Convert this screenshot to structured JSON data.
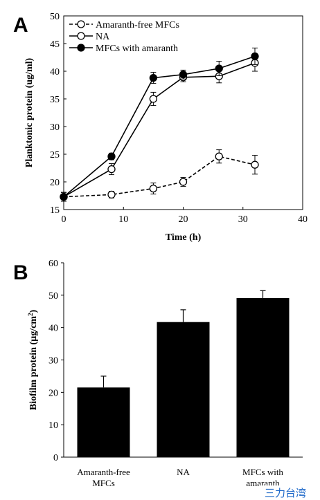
{
  "watermark_text": "三力台湾",
  "chart_data": [
    {
      "panel": "A",
      "type": "line",
      "xlabel": "Time (h)",
      "ylabel": "Planktonic protein (ug/ml)",
      "xlim": [
        0,
        40
      ],
      "ylim": [
        15,
        50
      ],
      "xticks": [
        0,
        10,
        20,
        30,
        40
      ],
      "yticks": [
        15,
        20,
        25,
        30,
        35,
        40,
        45,
        50
      ],
      "grid": false,
      "legend_position": "top-left",
      "series": [
        {
          "name": "Amaranth-free MFCs",
          "marker": "open-circle",
          "line": "dashed",
          "color": "#000000",
          "x": [
            0,
            8,
            15,
            20,
            26,
            32
          ],
          "y": [
            17.3,
            17.7,
            18.8,
            20.0,
            24.6,
            23.1
          ],
          "err": [
            0.8,
            0.6,
            1.0,
            0.8,
            1.2,
            1.7
          ]
        },
        {
          "name": "NA",
          "marker": "open-circle",
          "line": "solid",
          "color": "#000000",
          "x": [
            0,
            8,
            15,
            20,
            26,
            32
          ],
          "y": [
            17.3,
            22.3,
            35.0,
            38.9,
            39.1,
            41.5
          ],
          "err": [
            0.8,
            1.0,
            1.2,
            0.8,
            1.2,
            1.5
          ]
        },
        {
          "name": "MFCs with amaranth",
          "marker": "filled-circle",
          "line": "solid",
          "color": "#000000",
          "x": [
            0,
            8,
            15,
            20,
            26,
            32
          ],
          "y": [
            17.3,
            24.6,
            38.8,
            39.4,
            40.5,
            42.7
          ],
          "err": [
            0.8,
            0.6,
            1.0,
            0.8,
            1.3,
            1.5
          ]
        }
      ]
    },
    {
      "panel": "B",
      "type": "bar",
      "ylabel": "Biofilm protein (µg/cm²)",
      "ylabel_main": "Biofilm protein (µg/cm",
      "ylabel_sup": "2",
      "ylabel_end": ")",
      "ylim": [
        0,
        60
      ],
      "yticks": [
        0,
        10,
        20,
        30,
        40,
        50,
        60
      ],
      "grid": false,
      "bar_color": "#000000",
      "categories": [
        [
          "Amaranth-free",
          "MFCs"
        ],
        [
          "NA"
        ],
        [
          "MFCs with",
          "amaranth"
        ]
      ],
      "values": [
        21.5,
        41.7,
        49.1
      ],
      "errors": [
        3.5,
        3.8,
        2.3
      ]
    }
  ]
}
